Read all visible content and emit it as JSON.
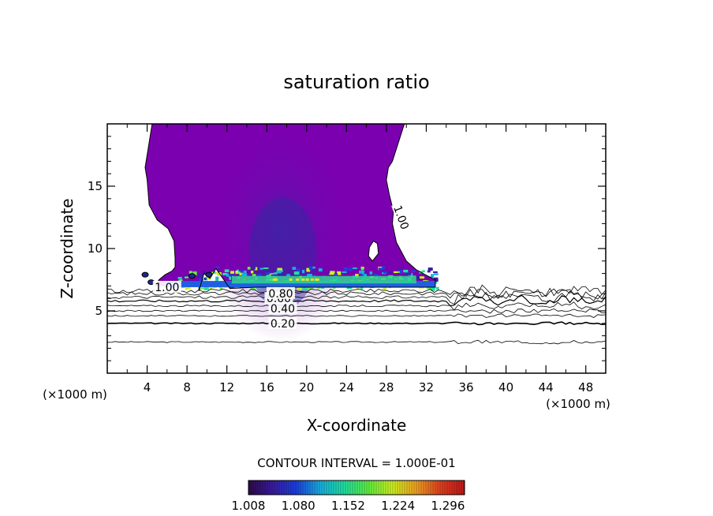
{
  "chart_data": {
    "type": "contour",
    "title": "saturation ratio",
    "xlabel": "X-coordinate",
    "ylabel": "Z-coordinate",
    "x_unit_label": "(×1000 m)",
    "x_unit_label_right": "(×1000 m)",
    "xlim": [
      0,
      50
    ],
    "ylim": [
      0,
      20
    ],
    "x_ticks": [
      4,
      8,
      12,
      16,
      20,
      24,
      28,
      32,
      36,
      40,
      44,
      48
    ],
    "y_ticks": [
      5,
      10,
      15
    ],
    "contour_interval_text": "CONTOUR INTERVAL = 1.000E-01",
    "contour_line_levels": [
      0.1,
      0.2,
      0.3,
      0.4,
      0.5,
      0.6,
      0.7,
      0.8,
      0.9,
      1.0
    ],
    "contour_line_labels": [
      {
        "text": "0.20",
        "x": 17.6,
        "z": 4.0
      },
      {
        "text": "0.40",
        "x": 17.6,
        "z": 5.2
      },
      {
        "text": "0.60",
        "x": 17.2,
        "z": 6.0
      },
      {
        "text": "0.80",
        "x": 17.4,
        "z": 6.4
      },
      {
        "text": "1.00",
        "x": 6.0,
        "z": 6.9
      },
      {
        "text": "1.00",
        "x": 29.5,
        "z": 12.5
      }
    ],
    "colorbar": {
      "min": 1.008,
      "max": 1.32,
      "tick_values": [
        1.008,
        1.08,
        1.152,
        1.224,
        1.296
      ],
      "tick_labels": [
        "1.008",
        "1.080",
        "1.152",
        "1.224",
        "1.296"
      ],
      "colors": [
        "#2e0a4a",
        "#3a1aa0",
        "#1a40e0",
        "#18b0e0",
        "#20e0a0",
        "#60f040",
        "#d0f020",
        "#f0a020",
        "#e04020",
        "#c01818"
      ]
    },
    "supersaturated_region": {
      "fill_color": "#7b00b0",
      "outline": [
        [
          9.2,
          6.9
        ],
        [
          9.2,
          6.6
        ],
        [
          9.7,
          8.0
        ],
        [
          10.3,
          7.6
        ],
        [
          10.9,
          8.4
        ],
        [
          12.3,
          6.8
        ],
        [
          14.9,
          6.9
        ],
        [
          16.9,
          6.9
        ],
        [
          18.9,
          6.9
        ],
        [
          22.9,
          6.9
        ],
        [
          25.9,
          6.9
        ],
        [
          27.9,
          6.9
        ],
        [
          30.9,
          6.9
        ],
        [
          32.9,
          6.9
        ],
        [
          32.9,
          7.5
        ],
        [
          31.9,
          7.9
        ],
        [
          31.0,
          8.3
        ],
        [
          30.0,
          9.0
        ],
        [
          29.0,
          10.5
        ],
        [
          28.6,
          12.0
        ],
        [
          28.7,
          13.0
        ],
        [
          28.3,
          14.3
        ],
        [
          28.0,
          15.5
        ],
        [
          28.2,
          16.5
        ],
        [
          28.6,
          17.0
        ],
        [
          29.2,
          18.5
        ],
        [
          29.8,
          20.0
        ],
        [
          4.5,
          20.0
        ],
        [
          4.2,
          18.5
        ],
        [
          3.8,
          16.5
        ],
        [
          4.0,
          15.5
        ],
        [
          4.2,
          13.5
        ],
        [
          5.0,
          12.3
        ],
        [
          6.1,
          11.6
        ],
        [
          6.7,
          10.6
        ],
        [
          6.8,
          9.2
        ],
        [
          6.8,
          8.5
        ],
        [
          6.5,
          8.2
        ],
        [
          5.8,
          7.9
        ],
        [
          5.2,
          7.5
        ],
        [
          4.8,
          7.0
        ]
      ],
      "hole": [
        [
          26.6,
          9.0
        ],
        [
          27.2,
          9.6
        ],
        [
          27.1,
          10.4
        ],
        [
          26.7,
          10.6
        ],
        [
          26.3,
          10.1
        ],
        [
          26.2,
          9.4
        ]
      ]
    }
  }
}
